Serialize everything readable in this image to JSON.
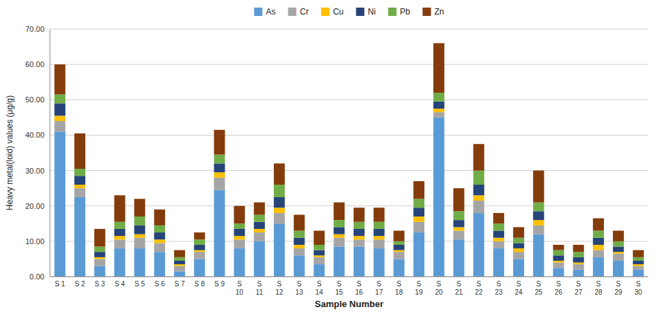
{
  "chart_data": {
    "type": "bar",
    "stacked": true,
    "grid": true,
    "legend": "top",
    "xlabel": "Sample Number",
    "ylabel": "Heavy metal(loid) values (μg/g)",
    "categories": [
      "S 1",
      "S 2",
      "S 3",
      "S 4",
      "S 5",
      "S 6",
      "S 7",
      "S 8",
      "S 9",
      "S\n10",
      "S\n11",
      "S\n12",
      "S\n13",
      "S\n14",
      "S\n15",
      "S\n16",
      "S\n17",
      "S\n18",
      "S\n19",
      "S\n20",
      "S\n21",
      "S\n22",
      "S\n23",
      "S\n24",
      "S\n25",
      "S\n26",
      "S\n27",
      "S\n28",
      "S\n29",
      "S\n30"
    ],
    "series": [
      {
        "name": "As",
        "color": "#5B9BD5",
        "values": [
          41.0,
          22.5,
          3.0,
          8.0,
          8.0,
          7.0,
          1.5,
          5.0,
          24.5,
          8.0,
          10.0,
          15.0,
          6.0,
          3.5,
          8.5,
          8.5,
          8.0,
          5.0,
          12.5,
          45.0,
          10.5,
          18.0,
          8.0,
          5.0,
          12.0,
          2.5,
          2.0,
          5.5,
          4.5,
          2.0
        ]
      },
      {
        "name": "Cr",
        "color": "#A5A5A5",
        "values": [
          3.0,
          2.5,
          2.0,
          2.5,
          3.0,
          2.5,
          1.5,
          2.0,
          3.5,
          2.5,
          2.5,
          3.0,
          2.0,
          2.0,
          2.5,
          2.0,
          2.5,
          2.0,
          3.0,
          1.5,
          2.5,
          3.5,
          2.0,
          2.0,
          2.5,
          1.5,
          1.5,
          2.0,
          2.0,
          1.0
        ]
      },
      {
        "name": "Cu",
        "color": "#FFC000",
        "values": [
          1.5,
          1.0,
          0.5,
          1.0,
          1.0,
          1.0,
          0.5,
          0.5,
          1.5,
          1.0,
          1.0,
          1.5,
          1.0,
          0.5,
          1.0,
          1.0,
          1.0,
          0.5,
          1.5,
          1.0,
          1.0,
          1.5,
          1.0,
          1.0,
          1.5,
          0.5,
          0.5,
          1.5,
          0.5,
          0.5
        ]
      },
      {
        "name": "Ni",
        "color": "#264478",
        "values": [
          3.5,
          2.5,
          1.5,
          2.0,
          2.5,
          2.0,
          1.0,
          1.5,
          2.5,
          2.0,
          2.0,
          3.0,
          2.0,
          1.5,
          2.0,
          2.0,
          2.0,
          1.5,
          2.5,
          2.0,
          2.0,
          3.0,
          2.0,
          1.5,
          2.5,
          1.5,
          1.5,
          2.0,
          1.5,
          1.0
        ]
      },
      {
        "name": "Pb",
        "color": "#70AD47",
        "values": [
          2.5,
          2.0,
          1.5,
          2.0,
          2.5,
          2.0,
          1.0,
          1.5,
          2.5,
          1.5,
          2.0,
          3.5,
          2.0,
          1.5,
          2.0,
          2.0,
          2.0,
          1.0,
          2.5,
          2.5,
          2.5,
          4.0,
          2.0,
          1.5,
          2.5,
          1.5,
          1.5,
          2.0,
          1.5,
          1.0
        ]
      },
      {
        "name": "Zn",
        "color": "#843C0C",
        "values": [
          8.5,
          10.0,
          5.0,
          7.5,
          5.0,
          4.5,
          2.0,
          2.0,
          7.0,
          5.0,
          3.5,
          6.0,
          4.5,
          4.0,
          5.0,
          4.0,
          4.0,
          3.0,
          5.0,
          14.0,
          6.5,
          7.5,
          3.0,
          3.0,
          9.0,
          1.5,
          2.0,
          3.5,
          3.0,
          2.0
        ]
      }
    ],
    "ylim": [
      0,
      70
    ],
    "yticks": [
      {
        "value": 0,
        "label": "0.00"
      },
      {
        "value": 10,
        "label": "10.00"
      },
      {
        "value": 20,
        "label": "20.00"
      },
      {
        "value": 30,
        "label": "30.00"
      },
      {
        "value": 40,
        "label": "40.00"
      },
      {
        "value": 50,
        "label": "50.00"
      },
      {
        "value": 60,
        "label": "60.00"
      },
      {
        "value": 70,
        "label": "70.00"
      }
    ]
  }
}
